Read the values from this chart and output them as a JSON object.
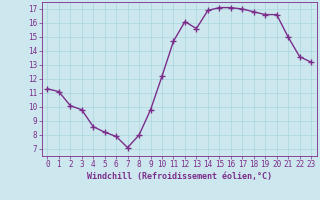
{
  "x": [
    0,
    1,
    2,
    3,
    4,
    5,
    6,
    7,
    8,
    9,
    10,
    11,
    12,
    13,
    14,
    15,
    16,
    17,
    18,
    19,
    20,
    21,
    22,
    23
  ],
  "y": [
    11.3,
    11.1,
    10.1,
    9.8,
    8.6,
    8.2,
    7.9,
    7.1,
    8.0,
    9.8,
    12.2,
    14.7,
    16.1,
    15.6,
    16.9,
    17.1,
    17.1,
    17.0,
    16.8,
    16.6,
    16.6,
    15.0,
    13.6,
    13.2
  ],
  "line_color": "#7b2d8b",
  "marker": "+",
  "markersize": 4,
  "linewidth": 1.0,
  "xlabel": "Windchill (Refroidissement éolien,°C)",
  "xlabel_fontsize": 6,
  "ylabel_ticks": [
    7,
    8,
    9,
    10,
    11,
    12,
    13,
    14,
    15,
    16,
    17
  ],
  "xlim": [
    -0.5,
    23.5
  ],
  "ylim": [
    6.5,
    17.5
  ],
  "bg_color": "#cce8ee",
  "grid_color": "#b0d8e0",
  "tick_label_fontsize": 5.5,
  "xticks": [
    0,
    1,
    2,
    3,
    4,
    5,
    6,
    7,
    8,
    9,
    10,
    11,
    12,
    13,
    14,
    15,
    16,
    17,
    18,
    19,
    20,
    21,
    22,
    23
  ]
}
